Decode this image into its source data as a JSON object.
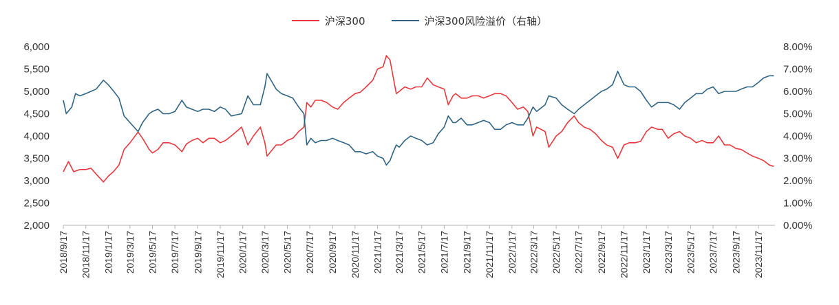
{
  "chart_data": {
    "type": "line",
    "legend": [
      {
        "name": "沪深300",
        "color": "#e8383d"
      },
      {
        "name": "沪深300风险溢价（右轴）",
        "color": "#2f6384"
      }
    ],
    "x_tick_labels": [
      "2018/9/17",
      "2018/11/17",
      "2019/1/17",
      "2019/3/17",
      "2019/5/17",
      "2019/7/17",
      "2019/9/17",
      "2019/11/17",
      "2020/1/17",
      "2020/3/17",
      "2020/5/17",
      "2020/7/17",
      "2020/9/17",
      "2020/11/17",
      "2021/1/17",
      "2021/3/17",
      "2021/5/17",
      "2021/7/17",
      "2021/9/17",
      "2021/11/17",
      "2022/1/17",
      "2022/3/17",
      "2022/5/17",
      "2022/7/17",
      "2022/9/17",
      "2022/11/17",
      "2023/1/17",
      "2023/3/17",
      "2023/5/17",
      "2023/7/17",
      "2023/9/17",
      "2023/11/17"
    ],
    "left_axis": {
      "ylim": [
        2000,
        6000
      ],
      "tick_labels": [
        "2,000",
        "2,500",
        "3,000",
        "3,500",
        "4,000",
        "4,500",
        "5,000",
        "5,500",
        "6,000"
      ]
    },
    "right_axis": {
      "ylim": [
        0,
        8
      ],
      "tick_labels": [
        "0.00%",
        "1.00%",
        "2.00%",
        "3.00%",
        "4.00%",
        "5.00%",
        "6.00%",
        "7.00%",
        "8.00%"
      ]
    },
    "series": [
      {
        "name": "沪深300",
        "axis": "left",
        "color": "#e8383d",
        "points": [
          [
            "2018/9/17",
            3200
          ],
          [
            "2018/10/1",
            3430
          ],
          [
            "2018/10/15",
            3200
          ],
          [
            "2018/11/1",
            3250
          ],
          [
            "2018/11/17",
            3250
          ],
          [
            "2018/12/1",
            3280
          ],
          [
            "2018/12/15",
            3150
          ],
          [
            "2019/1/4",
            2970
          ],
          [
            "2019/1/17",
            3100
          ],
          [
            "2019/2/1",
            3210
          ],
          [
            "2019/2/15",
            3350
          ],
          [
            "2019/3/1",
            3700
          ],
          [
            "2019/3/17",
            3850
          ],
          [
            "2019/4/8",
            4090
          ],
          [
            "2019/4/20",
            3950
          ],
          [
            "2019/5/8",
            3700
          ],
          [
            "2019/5/17",
            3620
          ],
          [
            "2019/6/1",
            3700
          ],
          [
            "2019/6/15",
            3850
          ],
          [
            "2019/7/1",
            3850
          ],
          [
            "2019/7/17",
            3800
          ],
          [
            "2019/8/5",
            3650
          ],
          [
            "2019/8/17",
            3820
          ],
          [
            "2019/9/1",
            3900
          ],
          [
            "2019/9/17",
            3950
          ],
          [
            "2019/10/1",
            3850
          ],
          [
            "2019/10/17",
            3950
          ],
          [
            "2019/11/1",
            3950
          ],
          [
            "2019/11/17",
            3850
          ],
          [
            "2019/12/1",
            3900
          ],
          [
            "2019/12/17",
            4000
          ],
          [
            "2020/1/14",
            4200
          ],
          [
            "2020/1/31",
            3800
          ],
          [
            "2020/2/15",
            4000
          ],
          [
            "2020/3/5",
            4200
          ],
          [
            "2020/3/17",
            3850
          ],
          [
            "2020/3/23",
            3550
          ],
          [
            "2020/4/17",
            3800
          ],
          [
            "2020/5/1",
            3800
          ],
          [
            "2020/5/17",
            3900
          ],
          [
            "2020/6/1",
            3950
          ],
          [
            "2020/6/17",
            4100
          ],
          [
            "2020/7/1",
            4200
          ],
          [
            "2020/7/9",
            4750
          ],
          [
            "2020/7/20",
            4650
          ],
          [
            "2020/8/1",
            4800
          ],
          [
            "2020/8/17",
            4800
          ],
          [
            "2020/9/1",
            4750
          ],
          [
            "2020/9/17",
            4650
          ],
          [
            "2020/10/1",
            4600
          ],
          [
            "2020/10/17",
            4750
          ],
          [
            "2020/11/1",
            4850
          ],
          [
            "2020/11/17",
            4950
          ],
          [
            "2020/12/1",
            4980
          ],
          [
            "2020/12/17",
            5100
          ],
          [
            "2021/1/4",
            5250
          ],
          [
            "2021/1/17",
            5500
          ],
          [
            "2021/2/1",
            5550
          ],
          [
            "2021/2/10",
            5800
          ],
          [
            "2021/2/20",
            5700
          ],
          [
            "2021/3/1",
            5300
          ],
          [
            "2021/3/9",
            4950
          ],
          [
            "2021/3/17",
            5000
          ],
          [
            "2021/4/1",
            5100
          ],
          [
            "2021/4/17",
            5050
          ],
          [
            "2021/5/1",
            5100
          ],
          [
            "2021/5/17",
            5100
          ],
          [
            "2021/6/1",
            5300
          ],
          [
            "2021/6/17",
            5150
          ],
          [
            "2021/7/1",
            5100
          ],
          [
            "2021/7/17",
            5050
          ],
          [
            "2021/7/28",
            4700
          ],
          [
            "2021/8/10",
            4900
          ],
          [
            "2021/8/17",
            4950
          ],
          [
            "2021/9/1",
            4850
          ],
          [
            "2021/9/17",
            4850
          ],
          [
            "2021/10/1",
            4900
          ],
          [
            "2021/10/17",
            4900
          ],
          [
            "2021/11/1",
            4850
          ],
          [
            "2021/11/17",
            4900
          ],
          [
            "2021/12/1",
            4950
          ],
          [
            "2021/12/17",
            4950
          ],
          [
            "2022/1/1",
            4900
          ],
          [
            "2022/1/17",
            4750
          ],
          [
            "2022/2/1",
            4600
          ],
          [
            "2022/2/17",
            4650
          ],
          [
            "2022/3/1",
            4550
          ],
          [
            "2022/3/15",
            4000
          ],
          [
            "2022/3/25",
            4200
          ],
          [
            "2022/4/17",
            4100
          ],
          [
            "2022/4/27",
            3750
          ],
          [
            "2022/5/17",
            4000
          ],
          [
            "2022/6/1",
            4100
          ],
          [
            "2022/6/17",
            4300
          ],
          [
            "2022/7/5",
            4450
          ],
          [
            "2022/7/17",
            4300
          ],
          [
            "2022/8/1",
            4200
          ],
          [
            "2022/8/17",
            4150
          ],
          [
            "2022/9/1",
            4050
          ],
          [
            "2022/9/17",
            3900
          ],
          [
            "2022/10/1",
            3800
          ],
          [
            "2022/10/17",
            3750
          ],
          [
            "2022/10/31",
            3500
          ],
          [
            "2022/11/17",
            3800
          ],
          [
            "2022/12/1",
            3850
          ],
          [
            "2022/12/17",
            3850
          ],
          [
            "2023/1/1",
            3880
          ],
          [
            "2023/1/17",
            4100
          ],
          [
            "2023/1/31",
            4200
          ],
          [
            "2023/2/17",
            4150
          ],
          [
            "2023/3/1",
            4150
          ],
          [
            "2023/3/17",
            3950
          ],
          [
            "2023/4/1",
            4050
          ],
          [
            "2023/4/17",
            4100
          ],
          [
            "2023/5/1",
            4000
          ],
          [
            "2023/5/17",
            3950
          ],
          [
            "2023/6/1",
            3850
          ],
          [
            "2023/6/17",
            3900
          ],
          [
            "2023/7/1",
            3850
          ],
          [
            "2023/7/17",
            3850
          ],
          [
            "2023/8/1",
            4000
          ],
          [
            "2023/8/17",
            3800
          ],
          [
            "2023/9/1",
            3800
          ],
          [
            "2023/9/17",
            3720
          ],
          [
            "2023/10/1",
            3700
          ],
          [
            "2023/10/17",
            3620
          ],
          [
            "2023/11/1",
            3550
          ],
          [
            "2023/11/17",
            3500
          ],
          [
            "2023/12/1",
            3450
          ],
          [
            "2023/12/17",
            3350
          ],
          [
            "2023/12/29",
            3320
          ]
        ]
      },
      {
        "name": "沪深300风险溢价（右轴）",
        "axis": "right",
        "color": "#2f6384",
        "points": [
          [
            "2018/9/17",
            5.6
          ],
          [
            "2018/9/25",
            5.0
          ],
          [
            "2018/10/10",
            5.3
          ],
          [
            "2018/10/20",
            5.9
          ],
          [
            "2018/11/1",
            5.8
          ],
          [
            "2018/11/17",
            5.9
          ],
          [
            "2018/12/1",
            6.0
          ],
          [
            "2018/12/15",
            6.1
          ],
          [
            "2019/1/4",
            6.5
          ],
          [
            "2019/1/17",
            6.3
          ],
          [
            "2019/2/1",
            6.0
          ],
          [
            "2019/2/15",
            5.7
          ],
          [
            "2019/3/1",
            4.9
          ],
          [
            "2019/3/17",
            4.6
          ],
          [
            "2019/4/8",
            4.2
          ],
          [
            "2019/4/20",
            4.6
          ],
          [
            "2019/5/8",
            5.0
          ],
          [
            "2019/5/17",
            5.1
          ],
          [
            "2019/6/1",
            5.2
          ],
          [
            "2019/6/15",
            5.0
          ],
          [
            "2019/7/1",
            5.0
          ],
          [
            "2019/7/17",
            5.1
          ],
          [
            "2019/8/5",
            5.6
          ],
          [
            "2019/8/17",
            5.3
          ],
          [
            "2019/9/1",
            5.2
          ],
          [
            "2019/9/17",
            5.1
          ],
          [
            "2019/10/1",
            5.2
          ],
          [
            "2019/10/17",
            5.2
          ],
          [
            "2019/11/1",
            5.1
          ],
          [
            "2019/11/17",
            5.3
          ],
          [
            "2019/12/1",
            5.2
          ],
          [
            "2019/12/17",
            4.9
          ],
          [
            "2020/1/14",
            5.0
          ],
          [
            "2020/1/31",
            5.8
          ],
          [
            "2020/2/15",
            5.4
          ],
          [
            "2020/3/5",
            5.4
          ],
          [
            "2020/3/17",
            6.2
          ],
          [
            "2020/3/23",
            6.8
          ],
          [
            "2020/4/17",
            6.1
          ],
          [
            "2020/5/1",
            5.9
          ],
          [
            "2020/5/17",
            5.8
          ],
          [
            "2020/6/1",
            5.7
          ],
          [
            "2020/6/17",
            5.3
          ],
          [
            "2020/7/1",
            5.0
          ],
          [
            "2020/7/9",
            3.6
          ],
          [
            "2020/7/20",
            3.9
          ],
          [
            "2020/8/1",
            3.7
          ],
          [
            "2020/8/17",
            3.8
          ],
          [
            "2020/9/1",
            3.8
          ],
          [
            "2020/9/17",
            3.9
          ],
          [
            "2020/10/1",
            3.8
          ],
          [
            "2020/10/17",
            3.7
          ],
          [
            "2020/11/1",
            3.6
          ],
          [
            "2020/11/17",
            3.3
          ],
          [
            "2020/12/1",
            3.3
          ],
          [
            "2020/12/17",
            3.2
          ],
          [
            "2021/1/4",
            3.3
          ],
          [
            "2021/1/17",
            3.1
          ],
          [
            "2021/2/1",
            3.0
          ],
          [
            "2021/2/10",
            2.7
          ],
          [
            "2021/2/20",
            2.9
          ],
          [
            "2021/3/1",
            3.3
          ],
          [
            "2021/3/9",
            3.6
          ],
          [
            "2021/3/17",
            3.5
          ],
          [
            "2021/4/1",
            3.8
          ],
          [
            "2021/4/17",
            4.0
          ],
          [
            "2021/5/1",
            3.9
          ],
          [
            "2021/5/17",
            3.8
          ],
          [
            "2021/6/1",
            3.6
          ],
          [
            "2021/6/17",
            3.7
          ],
          [
            "2021/7/1",
            4.1
          ],
          [
            "2021/7/17",
            4.4
          ],
          [
            "2021/7/28",
            4.9
          ],
          [
            "2021/8/10",
            4.6
          ],
          [
            "2021/8/17",
            4.6
          ],
          [
            "2021/9/1",
            4.8
          ],
          [
            "2021/9/17",
            4.5
          ],
          [
            "2021/10/1",
            4.5
          ],
          [
            "2021/10/17",
            4.6
          ],
          [
            "2021/11/1",
            4.7
          ],
          [
            "2021/11/17",
            4.6
          ],
          [
            "2021/12/1",
            4.3
          ],
          [
            "2021/12/17",
            4.3
          ],
          [
            "2022/1/1",
            4.5
          ],
          [
            "2022/1/17",
            4.6
          ],
          [
            "2022/2/1",
            4.5
          ],
          [
            "2022/2/17",
            4.5
          ],
          [
            "2022/3/1",
            4.8
          ],
          [
            "2022/3/15",
            5.3
          ],
          [
            "2022/3/25",
            5.1
          ],
          [
            "2022/4/17",
            5.4
          ],
          [
            "2022/4/27",
            5.8
          ],
          [
            "2022/5/17",
            5.7
          ],
          [
            "2022/6/1",
            5.4
          ],
          [
            "2022/6/17",
            5.2
          ],
          [
            "2022/7/5",
            5.0
          ],
          [
            "2022/7/17",
            5.2
          ],
          [
            "2022/8/1",
            5.4
          ],
          [
            "2022/8/17",
            5.6
          ],
          [
            "2022/9/1",
            5.8
          ],
          [
            "2022/9/17",
            6.0
          ],
          [
            "2022/10/1",
            6.1
          ],
          [
            "2022/10/17",
            6.3
          ],
          [
            "2022/10/31",
            6.9
          ],
          [
            "2022/11/17",
            6.3
          ],
          [
            "2022/12/1",
            6.2
          ],
          [
            "2022/12/17",
            6.2
          ],
          [
            "2023/1/1",
            6.0
          ],
          [
            "2023/1/17",
            5.6
          ],
          [
            "2023/1/31",
            5.3
          ],
          [
            "2023/2/17",
            5.5
          ],
          [
            "2023/3/1",
            5.5
          ],
          [
            "2023/3/17",
            5.5
          ],
          [
            "2023/4/1",
            5.4
          ],
          [
            "2023/4/17",
            5.2
          ],
          [
            "2023/5/1",
            5.5
          ],
          [
            "2023/5/17",
            5.7
          ],
          [
            "2023/6/1",
            5.9
          ],
          [
            "2023/6/17",
            5.9
          ],
          [
            "2023/7/1",
            6.1
          ],
          [
            "2023/7/17",
            6.2
          ],
          [
            "2023/8/1",
            5.9
          ],
          [
            "2023/8/17",
            6.0
          ],
          [
            "2023/9/1",
            6.0
          ],
          [
            "2023/9/17",
            6.0
          ],
          [
            "2023/10/1",
            6.1
          ],
          [
            "2023/10/17",
            6.2
          ],
          [
            "2023/11/1",
            6.2
          ],
          [
            "2023/11/17",
            6.4
          ],
          [
            "2023/12/1",
            6.6
          ],
          [
            "2023/12/17",
            6.7
          ],
          [
            "2023/12/29",
            6.7
          ]
        ]
      }
    ]
  }
}
